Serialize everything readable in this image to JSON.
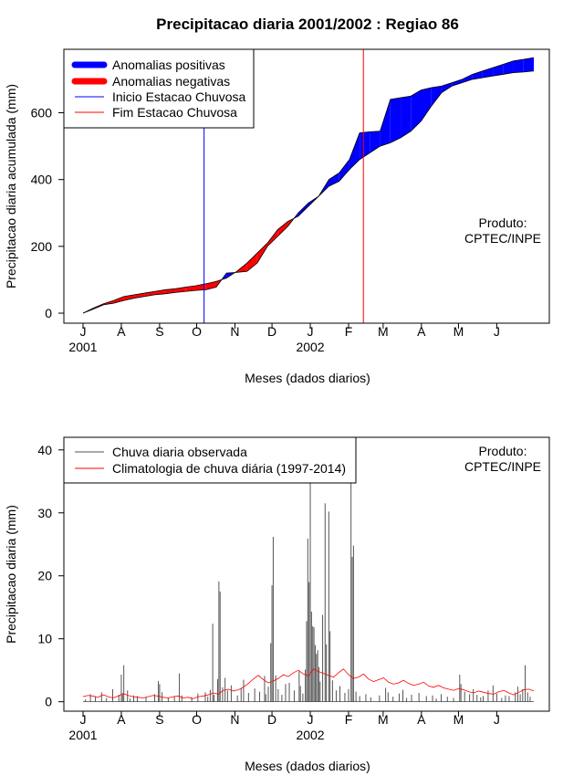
{
  "chart_data": [
    {
      "type": "area",
      "title": "Precipitacao diaria 2001/2002 : Regiao 86",
      "ylabel": "Precipitacao diaria acumulada (mm)",
      "xlabel": "Meses (dados diarios)",
      "ylim": [
        -30,
        790
      ],
      "yticks": [
        0,
        200,
        400,
        600
      ],
      "month_ticks": [
        "J",
        "A",
        "S",
        "O",
        "N",
        "D",
        "J",
        "F",
        "M",
        "A",
        "M",
        "J"
      ],
      "year_labels": [
        {
          "text": "2001",
          "month_index": 0
        },
        {
          "text": "2002",
          "month_index": 6
        }
      ],
      "days": [
        0,
        31,
        62,
        92,
        123,
        153,
        184,
        215,
        243,
        274,
        304,
        335,
        365
      ],
      "observed_cumulative": [
        0,
        12,
        25,
        30,
        38,
        45,
        50,
        55,
        58,
        62,
        65,
        68,
        70,
        78,
        120,
        122,
        125,
        150,
        200,
        230,
        260,
        300,
        330,
        350,
        400,
        420,
        460,
        540,
        543,
        545,
        640,
        645,
        650,
        668,
        675,
        680,
        690,
        700,
        715,
        725,
        735,
        745,
        755,
        760,
        765
      ],
      "climatology_cumulative": [
        0,
        15,
        28,
        38,
        50,
        55,
        60,
        65,
        70,
        73,
        78,
        82,
        88,
        95,
        105,
        125,
        150,
        180,
        210,
        250,
        275,
        290,
        320,
        350,
        380,
        395,
        430,
        460,
        480,
        500,
        510,
        525,
        545,
        575,
        620,
        660,
        680,
        690,
        700,
        705,
        710,
        715,
        720,
        722,
        725
      ],
      "inicio_estacao_day": 98,
      "fim_estacao_day": 227,
      "legend": [
        {
          "label": "Anomalias positivas",
          "color": "#0000ff",
          "style": "thick"
        },
        {
          "label": "Anomalias negativas",
          "color": "#ff0000",
          "style": "thick"
        },
        {
          "label": "Inicio Estacao Chuvosa",
          "color": "#0000ff",
          "style": "thin"
        },
        {
          "label": "Fim Estacao Chuvosa",
          "color": "#ff0000",
          "style": "thin"
        }
      ],
      "legend_position": "top-left",
      "product_line1": "Produto:",
      "product_line2": "CPTEC/INPE"
    },
    {
      "type": "bar",
      "ylabel": "Precipitacao diaria (mm)",
      "xlabel": "Meses (dados diarios)",
      "ylim": [
        -1.5,
        42
      ],
      "yticks": [
        0,
        10,
        20,
        30,
        40
      ],
      "month_ticks": [
        "J",
        "A",
        "S",
        "O",
        "N",
        "D",
        "J",
        "F",
        "M",
        "A",
        "M",
        "J"
      ],
      "year_labels": [
        {
          "text": "2001",
          "month_index": 0
        },
        {
          "text": "2002",
          "month_index": 6
        }
      ],
      "daily_observed": [
        {
          "day": 2,
          "value": 0.4
        },
        {
          "day": 6,
          "value": 1.2
        },
        {
          "day": 10,
          "value": 0.8
        },
        {
          "day": 15,
          "value": 1.5
        },
        {
          "day": 19,
          "value": 0.6
        },
        {
          "day": 24,
          "value": 2.0
        },
        {
          "day": 29,
          "value": 1.1
        },
        {
          "day": 31,
          "value": 4.3
        },
        {
          "day": 32,
          "value": 1.3
        },
        {
          "day": 33,
          "value": 5.8
        },
        {
          "day": 36,
          "value": 1.8
        },
        {
          "day": 38,
          "value": 0.5
        },
        {
          "day": 41,
          "value": 1.0
        },
        {
          "day": 44,
          "value": 0.9
        },
        {
          "day": 51,
          "value": 0.7
        },
        {
          "day": 58,
          "value": 1.2
        },
        {
          "day": 61,
          "value": 3.3
        },
        {
          "day": 62,
          "value": 2.8
        },
        {
          "day": 64,
          "value": 1.5
        },
        {
          "day": 69,
          "value": 0.6
        },
        {
          "day": 74,
          "value": 0.9
        },
        {
          "day": 78,
          "value": 4.5
        },
        {
          "day": 80,
          "value": 1.0
        },
        {
          "day": 88,
          "value": 0.7
        },
        {
          "day": 93,
          "value": 1.3
        },
        {
          "day": 99,
          "value": 1.5
        },
        {
          "day": 101,
          "value": 0.8
        },
        {
          "day": 103,
          "value": 1.9
        },
        {
          "day": 105,
          "value": 12.4
        },
        {
          "day": 106,
          "value": 1.1
        },
        {
          "day": 109,
          "value": 3.6
        },
        {
          "day": 110,
          "value": 19.1
        },
        {
          "day": 111,
          "value": 17.5
        },
        {
          "day": 113,
          "value": 2.3
        },
        {
          "day": 115,
          "value": 3.8
        },
        {
          "day": 117,
          "value": 1.8
        },
        {
          "day": 120,
          "value": 2.6
        },
        {
          "day": 125,
          "value": 1.0
        },
        {
          "day": 128,
          "value": 2.2
        },
        {
          "day": 130,
          "value": 3.5
        },
        {
          "day": 134,
          "value": 1.4
        },
        {
          "day": 139,
          "value": 2.1
        },
        {
          "day": 143,
          "value": 1.6
        },
        {
          "day": 147,
          "value": 4.1
        },
        {
          "day": 148,
          "value": 1.2
        },
        {
          "day": 150,
          "value": 2.4
        },
        {
          "day": 152,
          "value": 9.3
        },
        {
          "day": 153,
          "value": 18.5
        },
        {
          "day": 154,
          "value": 26.2
        },
        {
          "day": 156,
          "value": 4.2
        },
        {
          "day": 158,
          "value": 2.0
        },
        {
          "day": 161,
          "value": 1.1
        },
        {
          "day": 164,
          "value": 2.8
        },
        {
          "day": 167,
          "value": 3.0
        },
        {
          "day": 171,
          "value": 1.8
        },
        {
          "day": 175,
          "value": 4.8
        },
        {
          "day": 176,
          "value": 2.5
        },
        {
          "day": 178,
          "value": 1.3
        },
        {
          "day": 180,
          "value": 5.1
        },
        {
          "day": 181,
          "value": 12.8
        },
        {
          "day": 182,
          "value": 25.9
        },
        {
          "day": 183,
          "value": 19.0
        },
        {
          "day": 184,
          "value": 35.0
        },
        {
          "day": 185,
          "value": 14.3
        },
        {
          "day": 186,
          "value": 12.0
        },
        {
          "day": 187,
          "value": 11.8
        },
        {
          "day": 188,
          "value": 9.0
        },
        {
          "day": 189,
          "value": 7.6
        },
        {
          "day": 190,
          "value": 8.2
        },
        {
          "day": 191,
          "value": 5.5
        },
        {
          "day": 192,
          "value": 3.2
        },
        {
          "day": 194,
          "value": 13.8
        },
        {
          "day": 196,
          "value": 31.5
        },
        {
          "day": 197,
          "value": 9.1
        },
        {
          "day": 199,
          "value": 30.2
        },
        {
          "day": 200,
          "value": 11.2
        },
        {
          "day": 202,
          "value": 3.4
        },
        {
          "day": 205,
          "value": 1.8
        },
        {
          "day": 208,
          "value": 2.5
        },
        {
          "day": 212,
          "value": 1.4
        },
        {
          "day": 215,
          "value": 2.0
        },
        {
          "day": 217,
          "value": 35.0
        },
        {
          "day": 218,
          "value": 23.0
        },
        {
          "day": 219,
          "value": 24.8
        },
        {
          "day": 221,
          "value": 1.6
        },
        {
          "day": 224,
          "value": 0.9
        },
        {
          "day": 229,
          "value": 1.2
        },
        {
          "day": 233,
          "value": 0.7
        },
        {
          "day": 240,
          "value": 1.0
        },
        {
          "day": 245,
          "value": 2.2
        },
        {
          "day": 247,
          "value": 1.5
        },
        {
          "day": 251,
          "value": 0.8
        },
        {
          "day": 256,
          "value": 1.3
        },
        {
          "day": 259,
          "value": 1.9
        },
        {
          "day": 262,
          "value": 0.6
        },
        {
          "day": 266,
          "value": 1.1
        },
        {
          "day": 272,
          "value": 1.4
        },
        {
          "day": 278,
          "value": 0.9
        },
        {
          "day": 283,
          "value": 1.0
        },
        {
          "day": 286,
          "value": 0.5
        },
        {
          "day": 290,
          "value": 1.2
        },
        {
          "day": 295,
          "value": 0.8
        },
        {
          "day": 300,
          "value": 0.6
        },
        {
          "day": 305,
          "value": 4.3
        },
        {
          "day": 306,
          "value": 2.8
        },
        {
          "day": 309,
          "value": 1.6
        },
        {
          "day": 313,
          "value": 1.2
        },
        {
          "day": 316,
          "value": 2.0
        },
        {
          "day": 319,
          "value": 1.1
        },
        {
          "day": 322,
          "value": 0.7
        },
        {
          "day": 324,
          "value": 0.9
        },
        {
          "day": 328,
          "value": 1.8
        },
        {
          "day": 332,
          "value": 2.6
        },
        {
          "day": 335,
          "value": 1.3
        },
        {
          "day": 339,
          "value": 0.6
        },
        {
          "day": 342,
          "value": 1.0
        },
        {
          "day": 345,
          "value": 0.9
        },
        {
          "day": 350,
          "value": 1.5
        },
        {
          "day": 352,
          "value": 2.4
        },
        {
          "day": 354,
          "value": 1.2
        },
        {
          "day": 356,
          "value": 2.0
        },
        {
          "day": 358,
          "value": 5.8
        },
        {
          "day": 360,
          "value": 1.5
        },
        {
          "day": 362,
          "value": 0.8
        }
      ],
      "climatology_daily": [
        0.8,
        1.0,
        0.9,
        0.7,
        1.1,
        0.8,
        0.6,
        0.9,
        1.3,
        1.0,
        0.8,
        0.7,
        0.6,
        0.8,
        1.0,
        0.9,
        0.7,
        0.6,
        0.8,
        0.9,
        0.6,
        0.7,
        0.5,
        0.8,
        0.9,
        1.1,
        1.4,
        1.2,
        1.8,
        2.0,
        1.7,
        1.9,
        2.3,
        2.9,
        3.6,
        4.2,
        3.5,
        3.0,
        3.3,
        3.7,
        4.3,
        4.0,
        4.6,
        5.0,
        4.4,
        4.1,
        5.2,
        4.8,
        4.5,
        4.2,
        3.9,
        4.6,
        5.2,
        4.3,
        3.7,
        3.9,
        4.4,
        3.6,
        3.2,
        3.5,
        3.8,
        3.1,
        2.8,
        3.0,
        3.4,
        2.9,
        2.6,
        2.8,
        3.1,
        2.5,
        2.3,
        2.6,
        2.2,
        2.0,
        1.8,
        2.1,
        1.9,
        1.6,
        1.4,
        1.7,
        1.5,
        1.3,
        1.2,
        1.6,
        1.8,
        1.4,
        1.1,
        1.5,
        1.9,
        2.0,
        1.7
      ],
      "legend": [
        {
          "label": "Chuva diaria observada",
          "color": "#555555"
        },
        {
          "label": "Climatologia de chuva diária (1997-2014)",
          "color": "#ff0000"
        }
      ],
      "legend_position": "top-left",
      "product_line1": "Produto:",
      "product_line2": "CPTEC/INPE"
    }
  ]
}
